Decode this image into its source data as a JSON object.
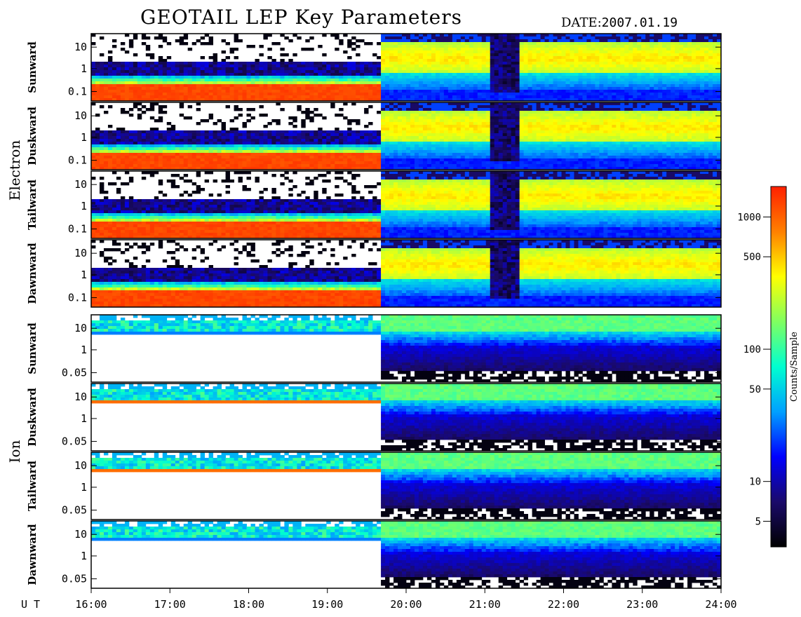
{
  "title": "GEOTAIL LEP Key Parameters",
  "date_label": "DATE:",
  "date_value": "2007.01.19",
  "chart_data": {
    "type": "heatmap",
    "title": "GEOTAIL LEP Key Parameters",
    "date": "2007.01.19",
    "x_axis": {
      "label": "U T",
      "ticks": [
        "16:00",
        "17:00",
        "18:00",
        "19:00",
        "20:00",
        "21:00",
        "22:00",
        "23:00",
        "24:00"
      ],
      "range": [
        "16:00",
        "24:00"
      ]
    },
    "groups": [
      {
        "name": "Electron",
        "panels": [
          {
            "name": "Sunward",
            "y_ticks": [
              "10",
              "1",
              "0.1"
            ]
          },
          {
            "name": "Duskward",
            "y_ticks": [
              "10",
              "1",
              "0.1"
            ]
          },
          {
            "name": "Tailward",
            "y_ticks": [
              "10",
              "1",
              "0.1"
            ]
          },
          {
            "name": "Dawnward",
            "y_ticks": [
              "10",
              "1",
              "0.1"
            ]
          }
        ]
      },
      {
        "name": "Ion",
        "panels": [
          {
            "name": "Sunward",
            "y_ticks": [
              "10",
              "1",
              "0.05"
            ]
          },
          {
            "name": "Duskward",
            "y_ticks": [
              "10",
              "1",
              "0.05"
            ]
          },
          {
            "name": "Tailward",
            "y_ticks": [
              "10",
              "1",
              "0.05"
            ]
          },
          {
            "name": "Dawnward",
            "y_ticks": [
              "10",
              "1",
              "0.05"
            ]
          }
        ]
      }
    ],
    "colorbar": {
      "label": "Counts/Sample",
      "scale": "log",
      "ticks": [
        1000,
        500,
        100,
        50,
        10,
        5
      ],
      "tick_labels": [
        "1000",
        "500",
        "100",
        "50",
        "10",
        "5"
      ],
      "colors": [
        "#000000",
        "#1a0a6a",
        "#0000ff",
        "#00a0ff",
        "#00ffd0",
        "#80ff60",
        "#ffff00",
        "#ff8000",
        "#ff2000"
      ]
    }
  }
}
